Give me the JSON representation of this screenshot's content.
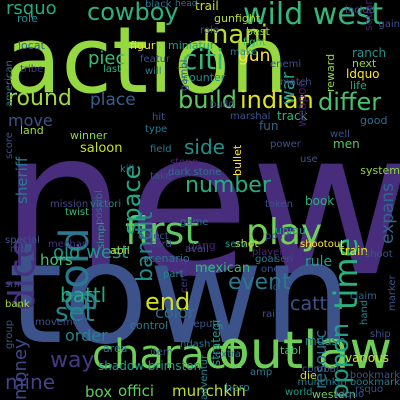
{
  "words": [
    {
      "text": "new",
      "color": "#472d7b"
    },
    {
      "text": "town",
      "color": "#3b528b"
    },
    {
      "text": "action",
      "color": "#95d840"
    },
    {
      "text": "outlaw",
      "color": "#6ece58"
    },
    {
      "text": "charact",
      "color": "#6ece58"
    },
    {
      "text": "first",
      "color": "#5ec962"
    },
    {
      "text": "play",
      "color": "#73d056"
    },
    {
      "text": "wild west",
      "color": "#35b779"
    },
    {
      "text": "cowboy",
      "color": "#2db27d"
    },
    {
      "text": "mani",
      "color": "#bddf26"
    },
    {
      "text": "citi",
      "color": "#37b878"
    },
    {
      "text": "gold",
      "color": "#2a788e"
    },
    {
      "text": "dice",
      "color": "#46327e"
    },
    {
      "text": "time",
      "color": "#2ab07f"
    },
    {
      "text": "indian",
      "color": "#e0e318"
    },
    {
      "text": "differ",
      "color": "#4ac16d"
    },
    {
      "text": "build",
      "color": "#5ec962"
    },
    {
      "text": "round",
      "color": "#a2da37"
    },
    {
      "text": "place",
      "color": "#34608d"
    },
    {
      "text": "space",
      "color": "#22a884"
    },
    {
      "text": "bandit",
      "color": "#23898e"
    },
    {
      "text": "number",
      "color": "#27ad81"
    },
    {
      "text": "set",
      "color": "#25858e"
    },
    {
      "text": "end",
      "color": "#d0e11c"
    },
    {
      "text": "old west",
      "color": "#1f988b"
    },
    {
      "text": "battl",
      "color": "#25ab82"
    },
    {
      "text": "money",
      "color": "#3e4989"
    },
    {
      "text": "event",
      "color": "#2a788e"
    },
    {
      "text": "oppon",
      "color": "#1fa287"
    },
    {
      "text": "way",
      "color": "#443a83"
    },
    {
      "text": "mine",
      "color": "#414487"
    },
    {
      "text": "rsquo",
      "color": "#25ac82"
    },
    {
      "text": "side",
      "color": "#21918c"
    },
    {
      "text": "gun",
      "color": "#fde725"
    },
    {
      "text": "war",
      "color": "#1fa187"
    },
    {
      "text": "sheriff",
      "color": "#2a788e"
    },
    {
      "text": "piec",
      "color": "#3dbc74"
    },
    {
      "text": "resourc",
      "color": "#2c728e"
    },
    {
      "text": "cattl",
      "color": "#3b528b"
    },
    {
      "text": "color",
      "color": "#2d708e"
    },
    {
      "text": "order",
      "color": "#26828e"
    },
    {
      "text": "box",
      "color": "#5ec962"
    },
    {
      "text": "offici",
      "color": "#65cb5e"
    },
    {
      "text": "munchkin",
      "color": "#c2df23"
    },
    {
      "text": "expans",
      "color": "#31668e"
    },
    {
      "text": "hors",
      "color": "#48c16e"
    },
    {
      "text": "move",
      "color": "#3b528b"
    },
    {
      "text": "gang",
      "color": "#481f70"
    },
    {
      "text": "game",
      "color": "#2e6e8e"
    },
    {
      "text": "card",
      "color": "#404688"
    },
    {
      "text": "black",
      "color": "#2a788e"
    },
    {
      "text": "fun",
      "color": "#33638d"
    },
    {
      "text": "saloon",
      "color": "#c8e020"
    },
    {
      "text": "mexican",
      "color": "#35b779"
    },
    {
      "text": "control",
      "color": "#297a8e"
    },
    {
      "text": "area",
      "color": "#2c738e"
    },
    {
      "text": "rule",
      "color": "#1f9e89"
    },
    {
      "text": "mdash",
      "color": "#287c8e"
    },
    {
      "text": "gunfight",
      "color": "#b5de2b"
    },
    {
      "text": "point",
      "color": "#3e4989"
    },
    {
      "text": "player",
      "color": "#482878"
    },
    {
      "text": "hero",
      "color": "#26828e"
    },
    {
      "text": "world",
      "color": "#1f988b"
    },
    {
      "text": "western",
      "color": "#6ece58"
    },
    {
      "text": "shadow brimston",
      "color": "#1e9c89"
    },
    {
      "text": "munchkin bookmark",
      "color": "#277f8e"
    },
    {
      "text": "various",
      "color": "#c8e020"
    },
    {
      "text": "shootout",
      "color": "#fde725"
    },
    {
      "text": "system",
      "color": "#90d743"
    },
    {
      "text": "stone",
      "color": "#482878"
    },
    {
      "text": "dark stone",
      "color": "#2c728e"
    },
    {
      "text": "bullet",
      "color": "#fde725"
    },
    {
      "text": "trail",
      "color": "#cae11f"
    },
    {
      "text": "track",
      "color": "#31b57b"
    },
    {
      "text": "bank",
      "color": "#a5db36"
    },
    {
      "text": "winner",
      "color": "#8bd646"
    },
    {
      "text": "land",
      "color": "#a8db34"
    },
    {
      "text": "train",
      "color": "#e5e419"
    },
    {
      "text": "book",
      "color": "#2db27d"
    },
    {
      "text": "ranch",
      "color": "#1f948c"
    },
    {
      "text": "ldquo",
      "color": "#fde725"
    },
    {
      "text": "next",
      "color": "#9bd93c"
    },
    {
      "text": "reward",
      "color": "#90d743"
    },
    {
      "text": "weapon",
      "color": "#481c6e"
    },
    {
      "text": "counter",
      "color": "#24868e"
    },
    {
      "text": "miniatur",
      "color": "#20a486"
    },
    {
      "text": "figur",
      "color": "#eae51a"
    },
    {
      "text": "head",
      "color": "#2e6e8e"
    },
    {
      "text": "best",
      "color": "#8bd646"
    },
    {
      "text": "fight",
      "color": "#40bd72"
    },
    {
      "text": "squar",
      "color": "#481f70"
    },
    {
      "text": "special",
      "color": "#3b528b"
    },
    {
      "text": "small",
      "color": "#3f4788"
    },
    {
      "text": "abil",
      "color": "#b0dd2f"
    },
    {
      "text": "strategi",
      "color": "#1f9a8a"
    },
    {
      "text": "scenario",
      "color": "#2c738e"
    },
    {
      "text": "map",
      "color": "#3e4989"
    },
    {
      "text": "object",
      "color": "#365c8d"
    },
    {
      "text": "shot",
      "color": "#c0df25"
    },
    {
      "text": "uniqu",
      "color": "#1f9a8a"
    },
    {
      "text": "life",
      "color": "#20a386"
    },
    {
      "text": "men",
      "color": "#58c765"
    },
    {
      "text": "good",
      "color": "#2f6c8e"
    },
    {
      "text": "american",
      "color": "#2c728e"
    },
    {
      "text": "tribe",
      "color": "#433e85"
    },
    {
      "text": "locat",
      "color": "#30698e"
    },
    {
      "text": "role",
      "color": "#21918c"
    },
    {
      "text": "score",
      "color": "#3b528b"
    },
    {
      "text": "mechan",
      "color": "#472d7b"
    },
    {
      "text": "possibl",
      "color": "#2f6b8e"
    },
    {
      "text": "simpl",
      "color": "#20a486"
    },
    {
      "text": "deputi",
      "color": "#38588c"
    },
    {
      "text": "movement",
      "color": "#3c4f8a"
    },
    {
      "text": "group",
      "color": "#3a548c"
    },
    {
      "text": "certain",
      "color": "#443a83"
    },
    {
      "text": "combat",
      "color": "#3b528b"
    },
    {
      "text": "amp",
      "color": "#2a788e"
    },
    {
      "text": "die",
      "color": "#d0e11c"
    },
    {
      "text": "tabl",
      "color": "#4ac16d"
    },
    {
      "text": "hand",
      "color": "#26828e"
    },
    {
      "text": "marker",
      "color": "#3b528b"
    },
    {
      "text": "claim",
      "color": "#33638d"
    },
    {
      "text": "extra",
      "color": "#2c738e"
    },
    {
      "text": "match",
      "color": "#3b528b"
    },
    {
      "text": "ndash",
      "color": "#2a788e"
    },
    {
      "text": "adventur",
      "color": "#23898e"
    },
    {
      "text": "serv",
      "color": "#1f9a8a"
    },
    {
      "text": "one",
      "color": "#3b528b"
    },
    {
      "text": "twist",
      "color": "#35b779"
    },
    {
      "text": "mission",
      "color": "#404688"
    },
    {
      "text": "victori",
      "color": "#26828e"
    },
    {
      "text": "kill",
      "color": "#2a788e"
    },
    {
      "text": "take",
      "color": "#3b528b"
    },
    {
      "text": "field",
      "color": "#2a788e"
    },
    {
      "text": "type",
      "color": "#2a788e"
    },
    {
      "text": "last",
      "color": "#2db27d"
    },
    {
      "text": "hit",
      "color": "#3b528b"
    },
    {
      "text": "will",
      "color": "#2a788e"
    },
    {
      "text": "avail",
      "color": "#3b528b"
    },
    {
      "text": "part",
      "color": "#26828e"
    },
    {
      "text": "item",
      "color": "#3b528b"
    },
    {
      "text": "bookmark",
      "color": "#3b528b"
    },
    {
      "text": "rdquo",
      "color": "#3b528b"
    },
    {
      "text": "lot",
      "color": "#3b528b"
    },
    {
      "text": "token",
      "color": "#3b528b"
    },
    {
      "text": "goal",
      "color": "#2a788e"
    },
    {
      "text": "includ",
      "color": "#3b528b"
    },
    {
      "text": "gambl",
      "color": "#3b528b"
    },
    {
      "text": "make",
      "color": "#26828e"
    },
    {
      "text": "marshal",
      "color": "#3b528b"
    },
    {
      "text": "rail",
      "color": "#3b528b"
    },
    {
      "text": "featur",
      "color": "#3b528b"
    },
    {
      "text": "power",
      "color": "#3b528b"
    },
    {
      "text": "use",
      "color": "#3b528b"
    },
    {
      "text": "well",
      "color": "#3b528b"
    },
    {
      "text": "role",
      "color": "#3b528b"
    },
    {
      "text": "seri",
      "color": "#3b528b"
    },
    {
      "text": "build",
      "color": "#3b528b"
    },
    {
      "text": "enemi",
      "color": "#3b528b"
    },
    {
      "text": "shoot",
      "color": "#3b528b"
    },
    {
      "text": "gain",
      "color": "#3b528b"
    },
    {
      "text": "ship",
      "color": "#3b528b"
    },
    {
      "text": "rsquo",
      "color": "#3b528b"
    }
  ]
}
